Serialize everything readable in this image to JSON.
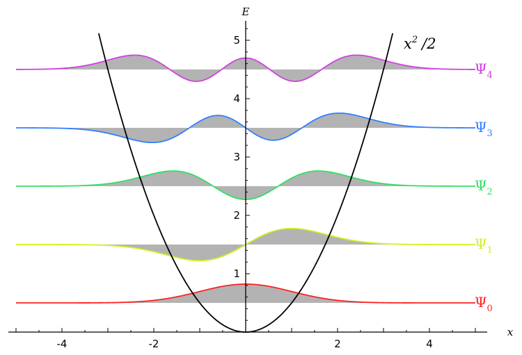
{
  "chart_data": {
    "type": "line",
    "xlabel": "x",
    "ylabel": "E",
    "xlim": [
      -5,
      5.3
    ],
    "ylim": [
      -0.05,
      5.3
    ],
    "x_ticks": [
      {
        "value": -4,
        "label": "-4"
      },
      {
        "value": -2,
        "label": "-2"
      },
      {
        "value": 2,
        "label": "2"
      },
      {
        "value": 4,
        "label": "4"
      }
    ],
    "y_ticks": [
      {
        "value": 1,
        "label": "1"
      },
      {
        "value": 2,
        "label": "2"
      },
      {
        "value": 3,
        "label": "3"
      },
      {
        "value": 4,
        "label": "4"
      },
      {
        "value": 5,
        "label": "5"
      }
    ],
    "potential": {
      "expression": "x^2/2",
      "label_base": "x",
      "label_exp": "2",
      "label_rest": "/2",
      "color": "#000000"
    },
    "fill_color": "#b3b3b3",
    "series": [
      {
        "name": "Ψ",
        "subscript": "0",
        "n": 0,
        "energy": 0.5,
        "color": "#ff2020"
      },
      {
        "name": "Ψ",
        "subscript": "1",
        "n": 1,
        "energy": 1.5,
        "color": "#d4f020"
      },
      {
        "name": "Ψ",
        "subscript": "2",
        "n": 2,
        "energy": 2.5,
        "color": "#30e060"
      },
      {
        "name": "Ψ",
        "subscript": "3",
        "n": 3,
        "energy": 3.5,
        "color": "#3080ff"
      },
      {
        "name": "Ψ",
        "subscript": "4",
        "n": 4,
        "energy": 4.5,
        "color": "#d040e0"
      }
    ]
  }
}
